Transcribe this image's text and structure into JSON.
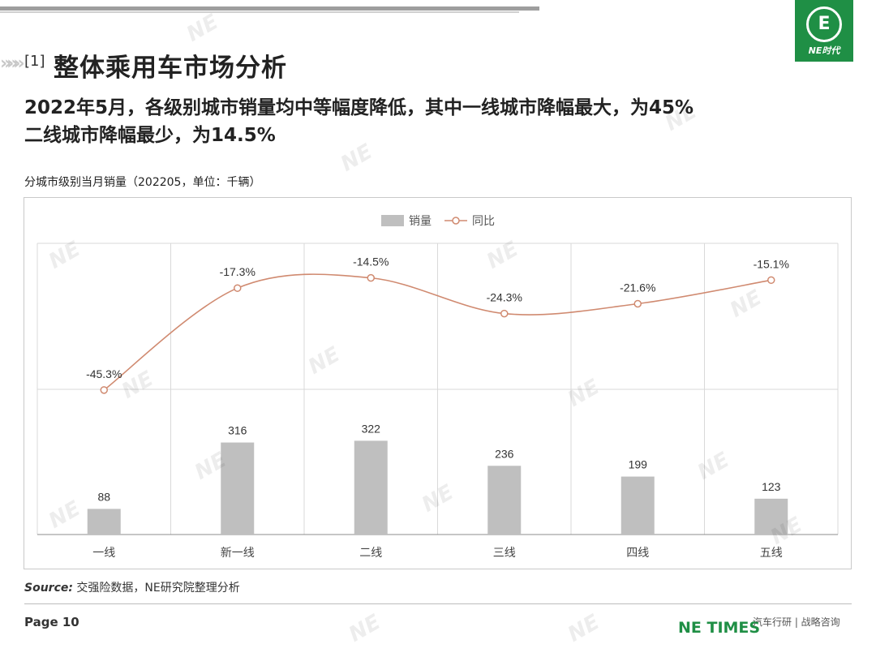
{
  "header": {
    "section_num": "[1]",
    "title": "整体乘用车市场分析",
    "logo_text": "NE时代",
    "logo_mark": "E"
  },
  "headline": {
    "line1_prefix": "2022年5月，各级别城市销量均中等幅度降低，其中一线城市降幅最大，为",
    "line1_value": "45%",
    "line2_prefix": "二线城市降幅最少，为",
    "line2_value": "14.5%"
  },
  "chart_title": "分城市级别当月销量（202205，单位：千辆）",
  "chart_data": {
    "type": "bar",
    "categories": [
      "一线",
      "新一线",
      "二线",
      "三线",
      "四线",
      "五线"
    ],
    "series": [
      {
        "name": "销量",
        "type": "bar",
        "values": [
          88,
          316,
          322,
          236,
          199,
          123
        ],
        "color": "#bfbfbf"
      },
      {
        "name": "同比",
        "type": "line",
        "values": [
          -45.3,
          -17.3,
          -14.5,
          -24.3,
          -21.6,
          -15.1
        ],
        "color": "#d08a70"
      }
    ],
    "bar_labels": [
      "88",
      "316",
      "322",
      "236",
      "199",
      "123"
    ],
    "line_labels": [
      "-45.3%",
      "-17.3%",
      "-14.5%",
      "-24.3%",
      "-21.6%",
      "-15.1%"
    ],
    "bar_ylim": [
      0,
      1000
    ],
    "line_ylim": [
      -85,
      -5
    ],
    "legend_position": "top-center",
    "grid": true
  },
  "source": {
    "label": "Source:",
    "text": "交强险数据，NE研究院整理分析"
  },
  "footer": {
    "page": "Page 10",
    "brand": "NE TIMES",
    "tagline": "汽车行研 | 战略咨询"
  }
}
